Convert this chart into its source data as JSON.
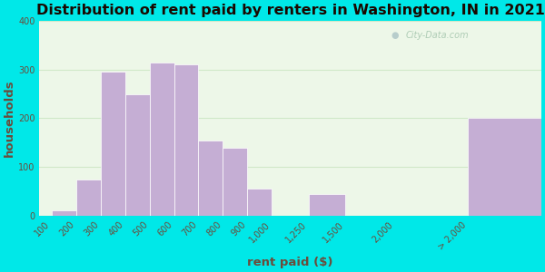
{
  "title": "Distribution of rent paid by renters in Washington, IN in 2021",
  "xlabel": "rent paid ($)",
  "ylabel": "households",
  "bar_labels": [
    "100",
    "200",
    "300",
    "400",
    "500",
    "600",
    "700",
    "800",
    "900",
    "1,000",
    "1,250",
    "1,500",
    "2,000",
    "> 2,000"
  ],
  "bar_values": [
    10,
    75,
    295,
    250,
    315,
    310,
    155,
    140,
    55,
    0,
    45,
    0,
    0,
    200
  ],
  "bar_color": "#c5aed4",
  "bar_edge_color": "#ffffff",
  "background_outer": "#00e8e8",
  "background_inner": "#edf7e8",
  "ylim": [
    0,
    400
  ],
  "yticks": [
    0,
    100,
    200,
    300,
    400
  ],
  "title_fontsize": 11.5,
  "axis_label_fontsize": 9.5,
  "tick_fontsize": 7,
  "watermark_text": "City-Data.com",
  "text_color": "#6b4c3b",
  "grid_color": "#d0e8c8",
  "bar_positions": [
    0,
    1,
    2,
    3,
    4,
    5,
    6,
    7,
    8,
    9,
    10.5,
    12,
    14,
    17
  ]
}
